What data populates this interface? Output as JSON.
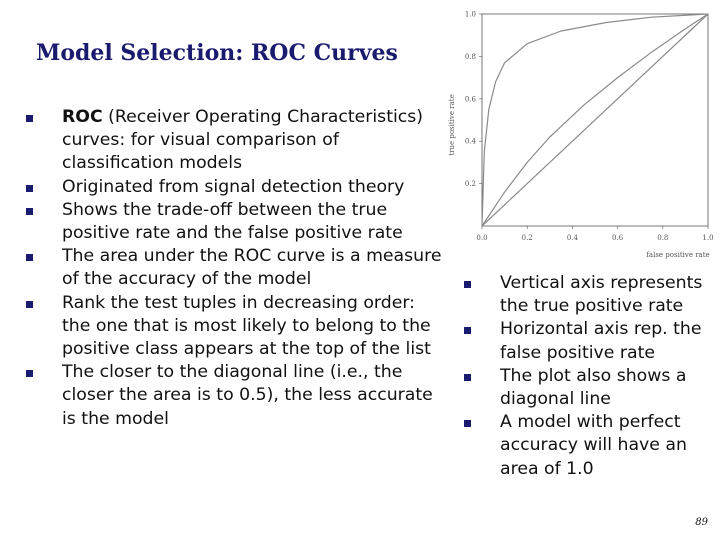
{
  "slide": {
    "title": "Model Selection: ROC Curves",
    "page_number": "89"
  },
  "main_bullets": [
    {
      "bold": "ROC",
      "text": " (Receiver Operating Characteristics) curves: for visual comparison of classification models"
    },
    {
      "bold": "",
      "text": "Originated from signal detection theory"
    },
    {
      "bold": "",
      "text": "Shows the trade-off between the true positive rate and the false positive rate"
    },
    {
      "bold": "",
      "text": "The area under the ROC curve is a measure of the accuracy of the model"
    },
    {
      "bold": "",
      "text": "Rank the test tuples in decreasing order: the one that is most likely to belong to the positive class appears at the top of the list"
    },
    {
      "bold": "",
      "text": "The closer to the diagonal line (i.e., the closer the area is to 0.5), the less accurate is the model"
    }
  ],
  "side_bullets": [
    "Vertical axis represents the true positive rate",
    "Horizontal axis rep. the false positive rate",
    "The plot also shows a diagonal line",
    "A model with perfect accuracy will have an area of 1.0"
  ],
  "chart_data": {
    "type": "line",
    "xlabel": "false positive rate",
    "ylabel": "true positive rate",
    "xlim": [
      0,
      1
    ],
    "ylim": [
      0,
      1
    ],
    "x_ticks": [
      "0.0",
      "0.2",
      "0.4",
      "0.6",
      "0.8",
      "1.0"
    ],
    "y_ticks": [
      "0.2",
      "0.4",
      "0.6",
      "0.8",
      "1.0"
    ],
    "grid": false,
    "series": [
      {
        "x": [
          0,
          0.01,
          0.03,
          0.06,
          0.1,
          0.2,
          0.35,
          0.55,
          0.75,
          1.0
        ],
        "y": [
          0,
          0.35,
          0.55,
          0.68,
          0.77,
          0.86,
          0.92,
          0.96,
          0.985,
          1.0
        ]
      },
      {
        "x": [
          0,
          0.1,
          0.2,
          0.3,
          0.45,
          0.6,
          0.75,
          0.9,
          1.0
        ],
        "y": [
          0,
          0.16,
          0.3,
          0.42,
          0.57,
          0.7,
          0.82,
          0.93,
          1.0
        ]
      },
      {
        "x": [
          0,
          1
        ],
        "y": [
          0,
          1
        ]
      }
    ],
    "colors": {
      "curve": "#8a8a8a",
      "axes": "#555555"
    }
  }
}
